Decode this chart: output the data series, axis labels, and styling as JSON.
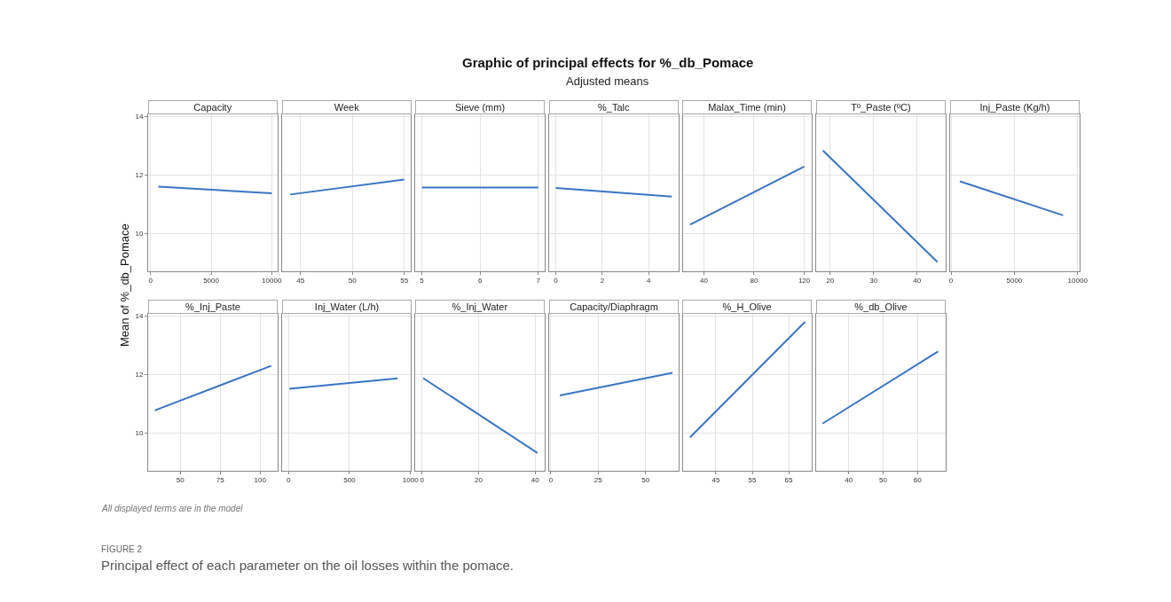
{
  "chart_data": [
    {
      "type": "other",
      "title": "Graphic of principal effects for %_db_Pomace",
      "subtitle": "Adjusted means",
      "ylabel": "Mean of %_db_Pomace",
      "annotations": [
        "All displayed terms are in the model",
        "FIGURE 2",
        "Principal effect of each parameter on the oil losses within the pomace."
      ]
    },
    {
      "type": "line",
      "title": "Capacity",
      "x": [
        640,
        10000
      ],
      "series": [
        {
          "color": "#3a75c4",
          "values": [
            11.6,
            11.37
          ]
        }
      ],
      "xlim": [
        -200,
        10480
      ],
      "xticks": [
        0,
        5000,
        10000
      ],
      "ylim": [
        8.72,
        14.05
      ],
      "yticks": [
        10,
        12,
        14
      ],
      "grid": true
    },
    {
      "type": "line",
      "title": "Week",
      "x": [
        44,
        55
      ],
      "series": [
        {
          "color": "#3a75c4",
          "values": [
            11.33,
            11.84
          ]
        }
      ],
      "xlim": [
        43.2,
        55.66
      ],
      "xticks": [
        45,
        50,
        55
      ],
      "ylim": [
        8.72,
        14.05
      ],
      "yticks": [
        10,
        12,
        14
      ],
      "grid": true,
      "tick_labels": "x"
    },
    {
      "type": "line",
      "title": "Sieve (mm)",
      "x": [
        5,
        7
      ],
      "series": [
        {
          "color": "#3a75c4",
          "values": [
            11.57,
            11.57
          ]
        }
      ],
      "xlim": [
        4.89,
        7.11
      ],
      "xticks": [
        5,
        6,
        7
      ],
      "ylim": [
        8.72,
        14.05
      ],
      "yticks": [
        10,
        12,
        14
      ],
      "grid": true,
      "tick_labels": "x"
    },
    {
      "type": "line",
      "title": "%_Talc",
      "x": [
        0,
        5
      ],
      "series": [
        {
          "color": "#3a75c4",
          "values": [
            11.55,
            11.26
          ]
        }
      ],
      "xlim": [
        -0.29,
        5.28
      ],
      "xticks": [
        0,
        2,
        4
      ],
      "ylim": [
        8.72,
        14.05
      ],
      "yticks": [
        10,
        12,
        14
      ],
      "grid": true,
      "tick_labels": "x"
    },
    {
      "type": "line",
      "title": "Malax_Time (min)",
      "x": [
        29,
        120
      ],
      "series": [
        {
          "color": "#3a75c4",
          "values": [
            10.3,
            12.28
          ]
        }
      ],
      "xlim": [
        23.2,
        126.2
      ],
      "xticks": [
        40,
        80,
        120
      ],
      "ylim": [
        8.72,
        14.05
      ],
      "yticks": [
        10,
        12,
        14
      ],
      "grid": true,
      "tick_labels": "x"
    },
    {
      "type": "line",
      "title": "Tº_Paste (ºC)",
      "x": [
        18.3,
        44.7
      ],
      "series": [
        {
          "color": "#3a75c4",
          "values": [
            12.83,
            9.03
          ]
        }
      ],
      "xlim": [
        16.8,
        46.6
      ],
      "xticks": [
        20,
        30,
        40
      ],
      "ylim": [
        8.72,
        14.05
      ],
      "yticks": [
        10,
        12,
        14
      ],
      "grid": true,
      "tick_labels": "x"
    },
    {
      "type": "line",
      "title": "Inj_Paste (Kg/h)",
      "x": [
        700,
        8850
      ],
      "series": [
        {
          "color": "#3a75c4",
          "values": [
            11.78,
            10.62
          ]
        }
      ],
      "xlim": [
        -80,
        10130
      ],
      "xticks": [
        0,
        5000,
        10000
      ],
      "ylim": [
        8.72,
        14.05
      ],
      "yticks": [
        10,
        12,
        14
      ],
      "grid": true,
      "tick_labels": "x"
    },
    {
      "type": "line",
      "title": "%_Inj_Paste",
      "x": [
        34,
        107
      ],
      "series": [
        {
          "color": "#3a75c4",
          "values": [
            10.77,
            12.29
          ]
        }
      ],
      "xlim": [
        29.9,
        110.9
      ],
      "xticks": [
        50,
        75,
        100
      ],
      "ylim": [
        8.72,
        14.05
      ],
      "yticks": [
        10,
        12,
        14
      ],
      "grid": true
    },
    {
      "type": "line",
      "title": "Inj_Water (L/h)",
      "x": [
        7,
        895
      ],
      "series": [
        {
          "color": "#3a75c4",
          "values": [
            11.51,
            11.86
          ]
        }
      ],
      "xlim": [
        -54,
        1005
      ],
      "xticks": [
        0,
        500,
        1000
      ],
      "ylim": [
        8.72,
        14.05
      ],
      "yticks": [
        10,
        12,
        14
      ],
      "grid": true,
      "tick_labels": "x"
    },
    {
      "type": "line",
      "title": "%_Inj_Water",
      "x": [
        0.4,
        40.8
      ],
      "series": [
        {
          "color": "#3a75c4",
          "values": [
            11.87,
            9.32
          ]
        }
      ],
      "xlim": [
        -2.3,
        43.4
      ],
      "xticks": [
        0,
        20,
        40
      ],
      "ylim": [
        8.72,
        14.05
      ],
      "yticks": [
        10,
        12,
        14
      ],
      "grid": true,
      "tick_labels": "x"
    },
    {
      "type": "line",
      "title": "Capacity/Diaphragm",
      "x": [
        4.8,
        64.2
      ],
      "series": [
        {
          "color": "#3a75c4",
          "values": [
            11.28,
            12.05
          ]
        }
      ],
      "xlim": [
        -0.9,
        67.3
      ],
      "xticks": [
        0,
        25,
        50
      ],
      "ylim": [
        8.72,
        14.05
      ],
      "yticks": [
        10,
        12,
        14
      ],
      "grid": true,
      "tick_labels": "x"
    },
    {
      "type": "line",
      "title": "%_H_Olive",
      "x": [
        37.9,
        69.5
      ],
      "series": [
        {
          "color": "#3a75c4",
          "values": [
            9.85,
            13.79
          ]
        }
      ],
      "xlim": [
        35.9,
        71.4
      ],
      "xticks": [
        45,
        55,
        65
      ],
      "ylim": [
        8.72,
        14.05
      ],
      "yticks": [
        10,
        12,
        14
      ],
      "grid": true,
      "tick_labels": "x"
    },
    {
      "type": "line",
      "title": "%_db_Olive",
      "x": [
        32.4,
        66
      ],
      "series": [
        {
          "color": "#3a75c4",
          "values": [
            10.32,
            12.78
          ]
        }
      ],
      "xlim": [
        30.6,
        68.2
      ],
      "xticks": [
        40,
        50,
        60
      ],
      "ylim": [
        8.72,
        14.05
      ],
      "yticks": [
        10,
        12,
        14
      ],
      "grid": true,
      "tick_labels": "x"
    }
  ]
}
